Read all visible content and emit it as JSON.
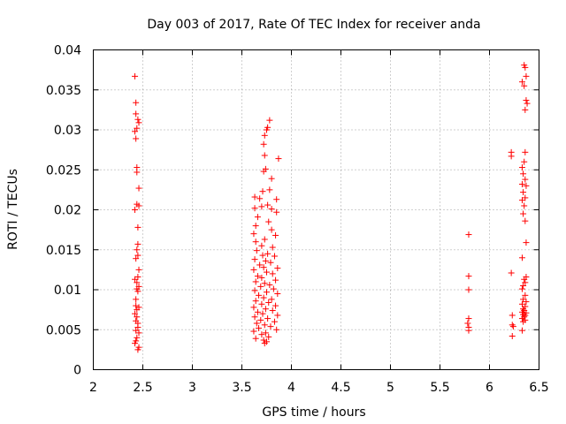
{
  "chart_data": {
    "type": "scatter",
    "title": "Day 003 of 2017, Rate Of TEC Index for receiver anda",
    "xlabel": "GPS time / hours",
    "ylabel": "ROTI / TECUs",
    "xlim": [
      2,
      6.5
    ],
    "ylim": [
      0,
      0.04
    ],
    "xticks": [
      "2",
      "2.5",
      "3",
      "3.5",
      "4",
      "4.5",
      "5",
      "5.5",
      "6",
      "6.5"
    ],
    "yticks": [
      "0",
      "0.005",
      "0.01",
      "0.015",
      "0.02",
      "0.025",
      "0.03",
      "0.035",
      "0.04"
    ],
    "grid": true,
    "marker": "+",
    "color": "#ff0000",
    "series": [
      {
        "name": "ROTI",
        "points": [
          [
            2.42,
            0.0367
          ],
          [
            2.43,
            0.0334
          ],
          [
            2.43,
            0.032
          ],
          [
            2.45,
            0.0313
          ],
          [
            2.46,
            0.0309
          ],
          [
            2.42,
            0.0298
          ],
          [
            2.44,
            0.0302
          ],
          [
            2.43,
            0.0289
          ],
          [
            2.44,
            0.0253
          ],
          [
            2.44,
            0.0247
          ],
          [
            2.46,
            0.0227
          ],
          [
            2.44,
            0.0207
          ],
          [
            2.42,
            0.02
          ],
          [
            2.46,
            0.0205
          ],
          [
            2.45,
            0.0178
          ],
          [
            2.45,
            0.0157
          ],
          [
            2.44,
            0.015
          ],
          [
            2.45,
            0.0143
          ],
          [
            2.43,
            0.0139
          ],
          [
            2.46,
            0.0125
          ],
          [
            2.45,
            0.0116
          ],
          [
            2.42,
            0.0113
          ],
          [
            2.44,
            0.0109
          ],
          [
            2.46,
            0.0104
          ],
          [
            2.44,
            0.0101
          ],
          [
            2.45,
            0.0098
          ],
          [
            2.43,
            0.0088
          ],
          [
            2.43,
            0.008
          ],
          [
            2.46,
            0.0078
          ],
          [
            2.44,
            0.0075
          ],
          [
            2.42,
            0.007
          ],
          [
            2.44,
            0.0066
          ],
          [
            2.43,
            0.0061
          ],
          [
            2.45,
            0.0058
          ],
          [
            2.45,
            0.0053
          ],
          [
            2.43,
            0.0049
          ],
          [
            2.46,
            0.0046
          ],
          [
            2.44,
            0.004
          ],
          [
            2.43,
            0.0036
          ],
          [
            2.42,
            0.0033
          ],
          [
            2.46,
            0.0028
          ],
          [
            2.45,
            0.0025
          ],
          [
            3.78,
            0.0312
          ],
          [
            3.76,
            0.0303
          ],
          [
            3.75,
            0.03
          ],
          [
            3.73,
            0.0293
          ],
          [
            3.72,
            0.0282
          ],
          [
            3.87,
            0.0264
          ],
          [
            3.73,
            0.0268
          ],
          [
            3.74,
            0.0251
          ],
          [
            3.72,
            0.0248
          ],
          [
            3.8,
            0.0239
          ],
          [
            3.71,
            0.0223
          ],
          [
            3.78,
            0.0225
          ],
          [
            3.63,
            0.0216
          ],
          [
            3.68,
            0.0214
          ],
          [
            3.85,
            0.0213
          ],
          [
            3.76,
            0.0206
          ],
          [
            3.7,
            0.0204
          ],
          [
            3.63,
            0.0202
          ],
          [
            3.8,
            0.0201
          ],
          [
            3.85,
            0.0197
          ],
          [
            3.66,
            0.0191
          ],
          [
            3.77,
            0.0185
          ],
          [
            3.64,
            0.018
          ],
          [
            3.8,
            0.0175
          ],
          [
            3.62,
            0.017
          ],
          [
            3.84,
            0.0168
          ],
          [
            3.73,
            0.0163
          ],
          [
            3.64,
            0.016
          ],
          [
            3.7,
            0.0155
          ],
          [
            3.81,
            0.0153
          ],
          [
            3.65,
            0.0149
          ],
          [
            3.76,
            0.0145
          ],
          [
            3.71,
            0.0143
          ],
          [
            3.83,
            0.0142
          ],
          [
            3.63,
            0.0138
          ],
          [
            3.74,
            0.0136
          ],
          [
            3.79,
            0.0134
          ],
          [
            3.68,
            0.0131
          ],
          [
            3.72,
            0.0128
          ],
          [
            3.86,
            0.0127
          ],
          [
            3.62,
            0.0125
          ],
          [
            3.75,
            0.0122
          ],
          [
            3.81,
            0.012
          ],
          [
            3.66,
            0.0117
          ],
          [
            3.7,
            0.0115
          ],
          [
            3.84,
            0.0112
          ],
          [
            3.64,
            0.011
          ],
          [
            3.73,
            0.0108
          ],
          [
            3.78,
            0.0106
          ],
          [
            3.69,
            0.0104
          ],
          [
            3.82,
            0.0101
          ],
          [
            3.63,
            0.0099
          ],
          [
            3.75,
            0.0097
          ],
          [
            3.86,
            0.0095
          ],
          [
            3.67,
            0.0093
          ],
          [
            3.72,
            0.009
          ],
          [
            3.8,
            0.0088
          ],
          [
            3.64,
            0.0086
          ],
          [
            3.77,
            0.0084
          ],
          [
            3.7,
            0.0082
          ],
          [
            3.84,
            0.008
          ],
          [
            3.62,
            0.0078
          ],
          [
            3.74,
            0.0076
          ],
          [
            3.81,
            0.0074
          ],
          [
            3.66,
            0.0072
          ],
          [
            3.71,
            0.007
          ],
          [
            3.86,
            0.0068
          ],
          [
            3.63,
            0.0066
          ],
          [
            3.76,
            0.0064
          ],
          [
            3.69,
            0.0062
          ],
          [
            3.83,
            0.006
          ],
          [
            3.65,
            0.0058
          ],
          [
            3.73,
            0.0056
          ],
          [
            3.79,
            0.0054
          ],
          [
            3.67,
            0.0052
          ],
          [
            3.85,
            0.005
          ],
          [
            3.62,
            0.0048
          ],
          [
            3.74,
            0.0046
          ],
          [
            3.7,
            0.0044
          ],
          [
            3.77,
            0.0041
          ],
          [
            3.64,
            0.0039
          ],
          [
            3.72,
            0.0037
          ],
          [
            3.75,
            0.0035
          ],
          [
            3.73,
            0.0033
          ],
          [
            5.79,
            0.0169
          ],
          [
            5.79,
            0.0117
          ],
          [
            5.79,
            0.01
          ],
          [
            5.79,
            0.0064
          ],
          [
            5.78,
            0.0058
          ],
          [
            5.79,
            0.0053
          ],
          [
            5.79,
            0.0049
          ],
          [
            6.35,
            0.0381
          ],
          [
            6.36,
            0.0378
          ],
          [
            6.37,
            0.0367
          ],
          [
            6.33,
            0.036
          ],
          [
            6.35,
            0.0355
          ],
          [
            6.37,
            0.0337
          ],
          [
            6.38,
            0.0333
          ],
          [
            6.36,
            0.0325
          ],
          [
            6.22,
            0.0272
          ],
          [
            6.22,
            0.0267
          ],
          [
            6.36,
            0.0272
          ],
          [
            6.35,
            0.026
          ],
          [
            6.33,
            0.0253
          ],
          [
            6.34,
            0.0245
          ],
          [
            6.36,
            0.0238
          ],
          [
            6.33,
            0.0232
          ],
          [
            6.37,
            0.023
          ],
          [
            6.34,
            0.0222
          ],
          [
            6.36,
            0.0215
          ],
          [
            6.33,
            0.0212
          ],
          [
            6.35,
            0.0205
          ],
          [
            6.34,
            0.0195
          ],
          [
            6.36,
            0.0186
          ],
          [
            6.37,
            0.0159
          ],
          [
            6.33,
            0.014
          ],
          [
            6.22,
            0.0121
          ],
          [
            6.37,
            0.0116
          ],
          [
            6.35,
            0.0113
          ],
          [
            6.36,
            0.0109
          ],
          [
            6.34,
            0.0105
          ],
          [
            6.33,
            0.0101
          ],
          [
            6.36,
            0.0093
          ],
          [
            6.34,
            0.0088
          ],
          [
            6.37,
            0.0085
          ],
          [
            6.33,
            0.0082
          ],
          [
            6.36,
            0.0079
          ],
          [
            6.34,
            0.0076
          ],
          [
            6.35,
            0.0074
          ],
          [
            6.33,
            0.0072
          ],
          [
            6.37,
            0.0071
          ],
          [
            6.34,
            0.0069
          ],
          [
            6.36,
            0.0068
          ],
          [
            6.23,
            0.0068
          ],
          [
            6.35,
            0.0066
          ],
          [
            6.33,
            0.0064
          ],
          [
            6.36,
            0.0062
          ],
          [
            6.34,
            0.006
          ],
          [
            6.23,
            0.0056
          ],
          [
            6.24,
            0.0054
          ],
          [
            6.33,
            0.0049
          ],
          [
            6.23,
            0.0042
          ]
        ]
      }
    ]
  }
}
